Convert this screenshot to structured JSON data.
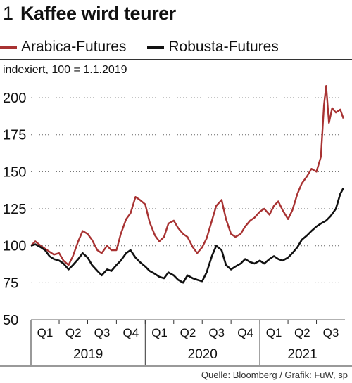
{
  "chart_number": "1",
  "source": "Quelle: Bloomberg / Grafik: FuW, sp",
  "colors": {
    "arabica": "#a83232",
    "robusta": "#111111",
    "grid": "#666666"
  },
  "chart_data": {
    "type": "line",
    "title": "Kaffee wird teurer",
    "unit_label": "indexiert, 100 = 1.1.2019",
    "ylim": [
      50,
      210
    ],
    "yticks": [
      50,
      75,
      100,
      125,
      150,
      175,
      200
    ],
    "grid": "horizontal dotted",
    "legend_position": "top",
    "x_range": [
      "2019-01-01",
      "2021-09-30"
    ],
    "quarter_ticks": [
      "Q1",
      "Q2",
      "Q3",
      "Q4",
      "Q1",
      "Q2",
      "Q3",
      "Q4",
      "Q1",
      "Q2",
      "Q3"
    ],
    "years": [
      "2019",
      "2020",
      "2021"
    ],
    "series": [
      {
        "name": "Arabica-Futures",
        "color": "#a83232",
        "points": [
          [
            "2019-01-01",
            100
          ],
          [
            "2019-01-15",
            103
          ],
          [
            "2019-02-01",
            100
          ],
          [
            "2019-02-15",
            98
          ],
          [
            "2019-03-01",
            96
          ],
          [
            "2019-03-15",
            94
          ],
          [
            "2019-04-01",
            95
          ],
          [
            "2019-04-15",
            90
          ],
          [
            "2019-05-01",
            87
          ],
          [
            "2019-05-15",
            93
          ],
          [
            "2019-06-01",
            103
          ],
          [
            "2019-06-15",
            110
          ],
          [
            "2019-07-01",
            108
          ],
          [
            "2019-07-15",
            104
          ],
          [
            "2019-08-01",
            97
          ],
          [
            "2019-08-15",
            95
          ],
          [
            "2019-09-01",
            100
          ],
          [
            "2019-09-15",
            97
          ],
          [
            "2019-10-01",
            97
          ],
          [
            "2019-10-15",
            108
          ],
          [
            "2019-11-01",
            118
          ],
          [
            "2019-11-15",
            122
          ],
          [
            "2019-12-01",
            133
          ],
          [
            "2019-12-15",
            131
          ],
          [
            "2020-01-01",
            128
          ],
          [
            "2020-01-15",
            116
          ],
          [
            "2020-02-01",
            107
          ],
          [
            "2020-02-15",
            103
          ],
          [
            "2020-03-01",
            106
          ],
          [
            "2020-03-15",
            115
          ],
          [
            "2020-04-01",
            117
          ],
          [
            "2020-04-15",
            112
          ],
          [
            "2020-05-01",
            108
          ],
          [
            "2020-05-15",
            106
          ],
          [
            "2020-06-01",
            99
          ],
          [
            "2020-06-15",
            95
          ],
          [
            "2020-07-01",
            99
          ],
          [
            "2020-07-15",
            105
          ],
          [
            "2020-08-01",
            117
          ],
          [
            "2020-08-15",
            127
          ],
          [
            "2020-09-01",
            131
          ],
          [
            "2020-09-15",
            118
          ],
          [
            "2020-10-01",
            108
          ],
          [
            "2020-10-15",
            106
          ],
          [
            "2020-11-01",
            108
          ],
          [
            "2020-11-15",
            113
          ],
          [
            "2020-12-01",
            117
          ],
          [
            "2020-12-15",
            119
          ],
          [
            "2021-01-01",
            123
          ],
          [
            "2021-01-15",
            125
          ],
          [
            "2021-02-01",
            121
          ],
          [
            "2021-02-15",
            127
          ],
          [
            "2021-03-01",
            130
          ],
          [
            "2021-03-15",
            124
          ],
          [
            "2021-04-01",
            118
          ],
          [
            "2021-04-15",
            124
          ],
          [
            "2021-05-01",
            135
          ],
          [
            "2021-05-15",
            142
          ],
          [
            "2021-06-01",
            147
          ],
          [
            "2021-06-15",
            152
          ],
          [
            "2021-07-01",
            150
          ],
          [
            "2021-07-15",
            160
          ],
          [
            "2021-07-25",
            195
          ],
          [
            "2021-08-01",
            208
          ],
          [
            "2021-08-10",
            183
          ],
          [
            "2021-08-20",
            193
          ],
          [
            "2021-09-01",
            190
          ],
          [
            "2021-09-15",
            192
          ],
          [
            "2021-09-25",
            186
          ]
        ]
      },
      {
        "name": "Robusta-Futures",
        "color": "#111111",
        "points": [
          [
            "2019-01-01",
            100
          ],
          [
            "2019-01-15",
            101
          ],
          [
            "2019-02-01",
            99
          ],
          [
            "2019-02-15",
            97
          ],
          [
            "2019-03-01",
            93
          ],
          [
            "2019-03-15",
            91
          ],
          [
            "2019-04-01",
            90
          ],
          [
            "2019-04-15",
            88
          ],
          [
            "2019-05-01",
            84
          ],
          [
            "2019-05-15",
            87
          ],
          [
            "2019-06-01",
            91
          ],
          [
            "2019-06-15",
            95
          ],
          [
            "2019-07-01",
            92
          ],
          [
            "2019-07-15",
            87
          ],
          [
            "2019-08-01",
            83
          ],
          [
            "2019-08-15",
            80
          ],
          [
            "2019-09-01",
            84
          ],
          [
            "2019-09-15",
            83
          ],
          [
            "2019-10-01",
            87
          ],
          [
            "2019-10-15",
            90
          ],
          [
            "2019-11-01",
            95
          ],
          [
            "2019-11-15",
            97
          ],
          [
            "2019-12-01",
            92
          ],
          [
            "2019-12-15",
            89
          ],
          [
            "2020-01-01",
            86
          ],
          [
            "2020-01-15",
            83
          ],
          [
            "2020-02-01",
            81
          ],
          [
            "2020-02-15",
            79
          ],
          [
            "2020-03-01",
            78
          ],
          [
            "2020-03-15",
            82
          ],
          [
            "2020-04-01",
            80
          ],
          [
            "2020-04-15",
            77
          ],
          [
            "2020-05-01",
            75
          ],
          [
            "2020-05-15",
            80
          ],
          [
            "2020-06-01",
            78
          ],
          [
            "2020-06-15",
            77
          ],
          [
            "2020-07-01",
            76
          ],
          [
            "2020-07-15",
            82
          ],
          [
            "2020-08-01",
            93
          ],
          [
            "2020-08-15",
            100
          ],
          [
            "2020-09-01",
            97
          ],
          [
            "2020-09-15",
            87
          ],
          [
            "2020-10-01",
            84
          ],
          [
            "2020-10-15",
            86
          ],
          [
            "2020-11-01",
            88
          ],
          [
            "2020-11-15",
            91
          ],
          [
            "2020-12-01",
            89
          ],
          [
            "2020-12-15",
            88
          ],
          [
            "2021-01-01",
            90
          ],
          [
            "2021-01-15",
            88
          ],
          [
            "2021-02-01",
            91
          ],
          [
            "2021-02-15",
            93
          ],
          [
            "2021-03-01",
            91
          ],
          [
            "2021-03-15",
            90
          ],
          [
            "2021-04-01",
            92
          ],
          [
            "2021-04-15",
            95
          ],
          [
            "2021-05-01",
            99
          ],
          [
            "2021-05-15",
            104
          ],
          [
            "2021-06-01",
            107
          ],
          [
            "2021-06-15",
            110
          ],
          [
            "2021-07-01",
            113
          ],
          [
            "2021-07-15",
            115
          ],
          [
            "2021-08-01",
            117
          ],
          [
            "2021-08-15",
            120
          ],
          [
            "2021-09-01",
            125
          ],
          [
            "2021-09-15",
            135
          ],
          [
            "2021-09-25",
            139
          ]
        ]
      }
    ]
  }
}
